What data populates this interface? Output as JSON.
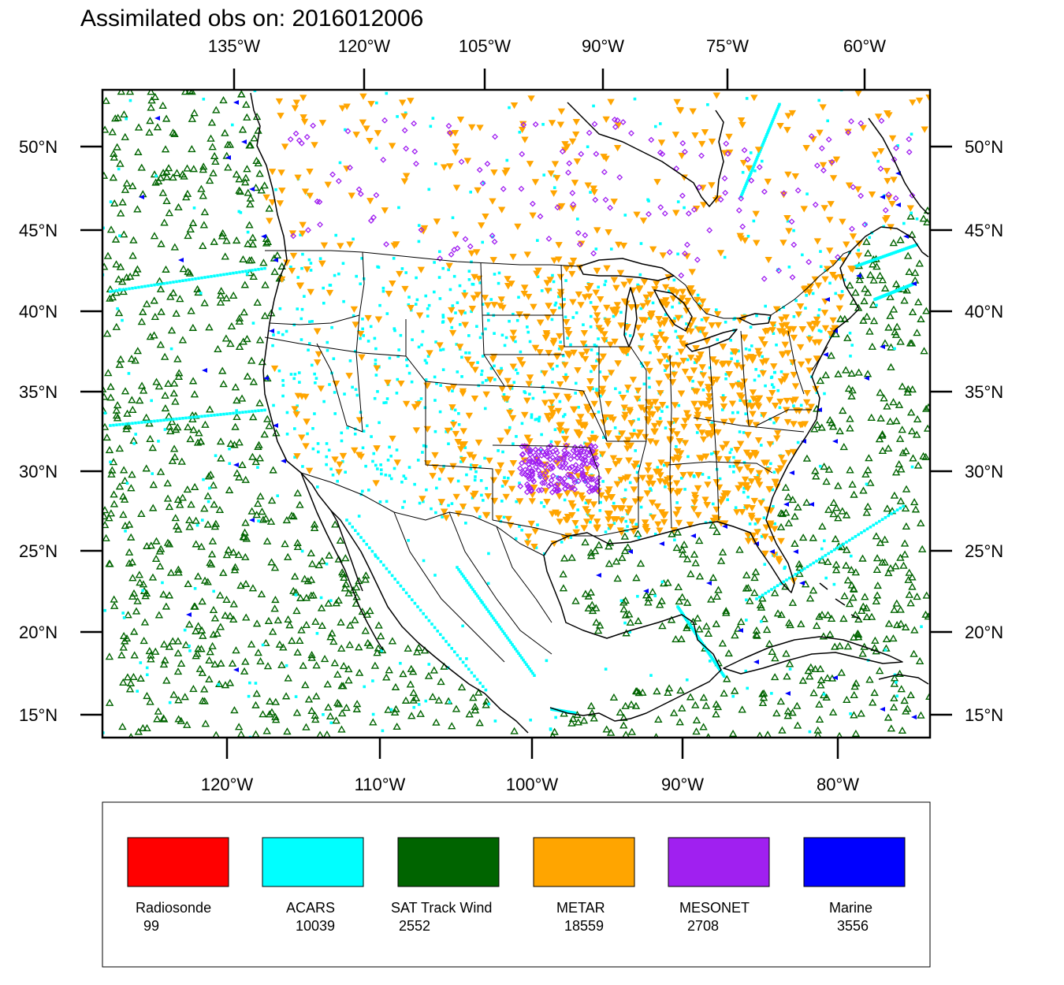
{
  "title": "Assimilated obs on: 2016012006",
  "top_axis": {
    "ticks": [
      "135°W",
      "120°W",
      "105°W",
      "90°W",
      "75°W",
      "60°W"
    ]
  },
  "bottom_axis": {
    "ticks": [
      "120°W",
      "110°W",
      "100°W",
      "90°W",
      "80°W"
    ]
  },
  "left_axis": {
    "ticks": [
      "50°N",
      "45°N",
      "40°N",
      "35°N",
      "30°N",
      "25°N",
      "20°N",
      "15°N"
    ]
  },
  "right_axis": {
    "ticks": [
      "50°N",
      "45°N",
      "40°N",
      "35°N",
      "30°N",
      "25°N",
      "20°N",
      "15°N"
    ]
  },
  "legend": [
    {
      "name": "Radiosonde",
      "count": "99",
      "color": "#ff0000"
    },
    {
      "name": "ACARS",
      "count": "10039",
      "color": "#00ffff"
    },
    {
      "name": "SAT Track Wind",
      "count": "2552",
      "color": "#006400"
    },
    {
      "name": "METAR",
      "count": "18559",
      "color": "#ffa500"
    },
    {
      "name": "MESONET",
      "count": "2708",
      "color": "#a020f0"
    },
    {
      "name": "Marine",
      "count": "3556",
      "color": "#0000ff"
    }
  ],
  "colors": {
    "coast": "#000000",
    "frame": "#000000",
    "acars": "#00ffff",
    "satwind": "#006400",
    "metar": "#ffa500",
    "mesonet": "#a020f0",
    "marine": "#0000ff"
  }
}
